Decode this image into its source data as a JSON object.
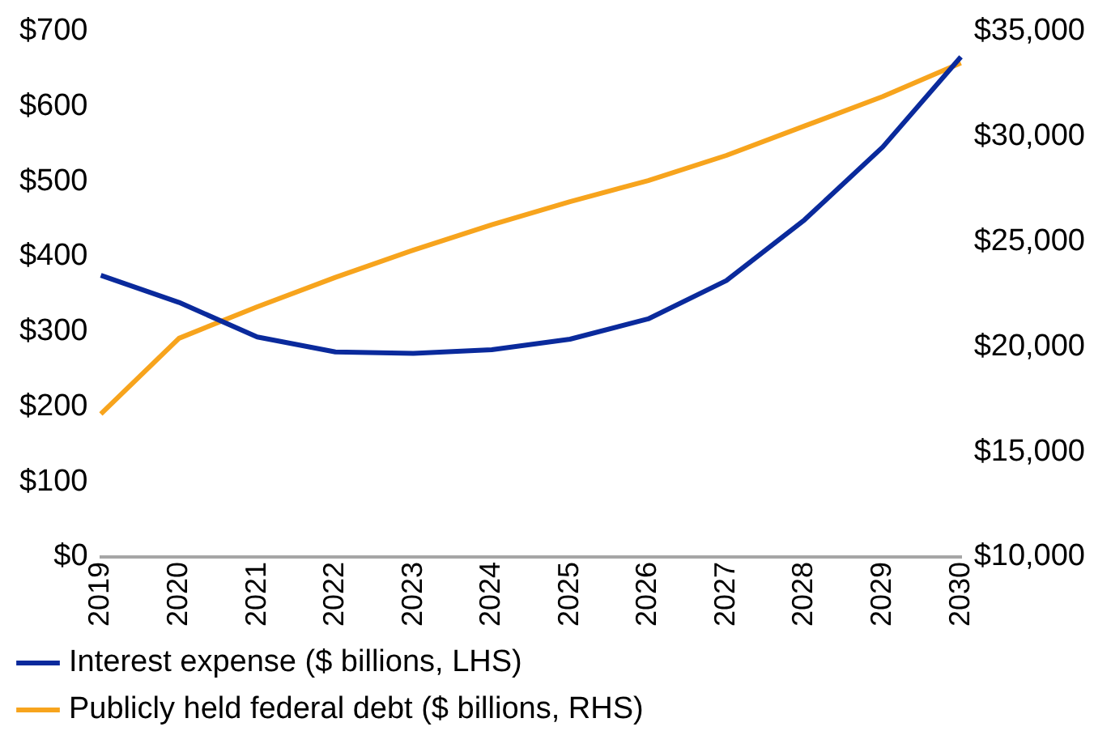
{
  "chart_data": {
    "type": "line",
    "categories": [
      "2019",
      "2020",
      "2021",
      "2022",
      "2023",
      "2024",
      "2025",
      "2026",
      "2027",
      "2028",
      "2029",
      "2030"
    ],
    "series": [
      {
        "name": "Interest expense ($ billions, LHS)",
        "color": "#0a2a9c",
        "values": [
          375,
          339,
          293,
          273,
          271,
          276,
          290,
          317,
          368,
          449,
          546,
          666
        ]
      },
      {
        "name": "Publicly held federal debt ($ billions, RHS)",
        "color": "#f7a41d",
        "axis": "y2",
        "values": [
          16800,
          20400,
          21900,
          23300,
          24600,
          25800,
          26900,
          27900,
          29100,
          30500,
          31900,
          33500
        ]
      }
    ],
    "ylim": [
      0,
      700
    ],
    "yticks": [
      {
        "value": 0,
        "label": "$0"
      },
      {
        "value": 100,
        "label": "$100"
      },
      {
        "value": 200,
        "label": "$200"
      },
      {
        "value": 300,
        "label": "$300"
      },
      {
        "value": 400,
        "label": "$400"
      },
      {
        "value": 500,
        "label": "$500"
      },
      {
        "value": 600,
        "label": "$600"
      },
      {
        "value": 700,
        "label": "$700"
      }
    ],
    "y2lim": [
      10000,
      35000
    ],
    "y2ticks": [
      {
        "value": 10000,
        "label": "$10,000"
      },
      {
        "value": 15000,
        "label": "$15,000"
      },
      {
        "value": 20000,
        "label": "$20,000"
      },
      {
        "value": 25000,
        "label": "$25,000"
      },
      {
        "value": 30000,
        "label": "$30,000"
      },
      {
        "value": 35000,
        "label": "$35,000"
      }
    ],
    "grid": false,
    "legend": "bottom",
    "marker": "none",
    "line_style": "solid"
  }
}
